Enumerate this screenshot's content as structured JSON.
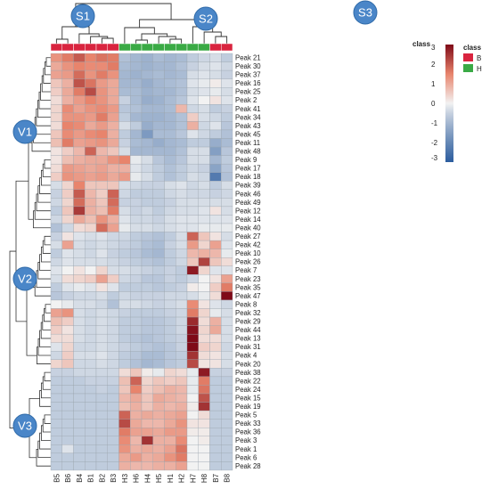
{
  "chart_data": {
    "type": "heatmap",
    "columns": [
      "B5",
      "B6",
      "B4",
      "B1",
      "B2",
      "B3",
      "H3",
      "H6",
      "H4",
      "H5",
      "H1",
      "H2",
      "H7",
      "H8",
      "B7",
      "B8"
    ],
    "column_class": [
      "B",
      "B",
      "B",
      "B",
      "B",
      "B",
      "H",
      "H",
      "H",
      "H",
      "H",
      "H",
      "H",
      "H",
      "B",
      "B"
    ],
    "rows": [
      "Peak 21",
      "Peak 30",
      "Peak 37",
      "Peak 16",
      "Peak 25",
      "Peak 2",
      "Peak 41",
      "Peak 34",
      "Peak 43",
      "Peak 45",
      "Peak 11",
      "Peak 48",
      "Peak 9",
      "Peak 17",
      "Peak 18",
      "Peak 39",
      "Peak 46",
      "Peak 49",
      "Peak 12",
      "Peak 14",
      "Peak 40",
      "Peak 27",
      "Peak 42",
      "Peak 10",
      "Peak 26",
      "Peak 7",
      "Peak 23",
      "Peak 35",
      "Peak 47",
      "Peak 8",
      "Peak 32",
      "Peak 29",
      "Peak 44",
      "Peak 13",
      "Peak 31",
      "Peak 4",
      "Peak 20",
      "Peak 38",
      "Peak 22",
      "Peak 24",
      "Peak 15",
      "Peak 19",
      "Peak 5",
      "Peak 33",
      "Peak 36",
      "Peak 3",
      "Peak 1",
      "Peak 6",
      "Peak 28"
    ],
    "values": [
      [
        1.3,
        1.6,
        2.0,
        1.5,
        1.7,
        1.6,
        -0.8,
        -1.0,
        -1.1,
        -0.9,
        -1.0,
        -0.9,
        -0.6,
        -0.4,
        -0.3,
        -0.6
      ],
      [
        1.0,
        1.3,
        1.5,
        1.4,
        1.4,
        1.6,
        -0.9,
        -1.0,
        -1.1,
        -1.0,
        -1.0,
        -0.8,
        -0.5,
        -0.3,
        -0.2,
        -0.4
      ],
      [
        1.1,
        1.2,
        1.8,
        1.3,
        1.6,
        1.3,
        -1.0,
        -1.1,
        -1.0,
        -0.9,
        -1.0,
        -0.9,
        -0.3,
        -0.2,
        -0.3,
        -0.5
      ],
      [
        0.6,
        0.9,
        2.1,
        1.7,
        1.2,
        1.0,
        -1.0,
        -1.0,
        -1.2,
        -1.0,
        -0.9,
        -0.8,
        -0.2,
        -0.1,
        0.1,
        -0.2
      ],
      [
        0.5,
        1.0,
        1.6,
        2.2,
        1.3,
        1.0,
        -0.9,
        -0.9,
        -1.1,
        -1.0,
        -1.0,
        -0.8,
        -0.3,
        -0.2,
        -0.1,
        -0.3
      ],
      [
        0.3,
        0.9,
        1.2,
        1.5,
        1.3,
        1.0,
        -0.5,
        -0.9,
        -1.2,
        -1.1,
        -0.9,
        -0.7,
        -0.2,
        0.0,
        0.2,
        -0.2
      ],
      [
        0.4,
        1.4,
        1.1,
        1.3,
        1.4,
        1.2,
        -0.7,
        -0.8,
        -1.0,
        -1.0,
        -0.9,
        0.8,
        -0.4,
        -0.3,
        -0.6,
        -0.5
      ],
      [
        0.4,
        1.3,
        1.3,
        1.2,
        1.6,
        1.1,
        -0.6,
        -1.0,
        -1.1,
        -1.1,
        -1.0,
        -0.8,
        0.5,
        -0.3,
        -0.4,
        -0.6
      ],
      [
        0.3,
        1.5,
        1.4,
        1.0,
        1.2,
        0.9,
        -0.3,
        -0.6,
        -1.2,
        -1.0,
        -1.0,
        -0.8,
        0.9,
        -0.4,
        -0.2,
        -0.7
      ],
      [
        0.6,
        1.4,
        1.2,
        1.4,
        1.5,
        0.9,
        -0.6,
        -1.0,
        -1.6,
        -0.9,
        -0.9,
        -0.7,
        -0.2,
        -0.4,
        -0.6,
        -0.8
      ],
      [
        0.7,
        1.6,
        1.1,
        1.2,
        1.3,
        1.0,
        -0.5,
        -0.9,
        -1.0,
        -1.2,
        -1.0,
        -0.9,
        -0.6,
        -0.6,
        -1.2,
        -0.9
      ],
      [
        0.2,
        0.5,
        0.8,
        1.9,
        0.8,
        0.6,
        -0.3,
        -1.0,
        -1.0,
        -1.0,
        -1.0,
        -0.8,
        -0.3,
        -0.3,
        -1.5,
        -0.7
      ],
      [
        0.2,
        0.7,
        0.9,
        1.0,
        1.0,
        1.3,
        1.5,
        -0.1,
        -0.3,
        -0.7,
        -0.9,
        -0.7,
        -0.3,
        -0.3,
        -1.0,
        -0.6
      ],
      [
        0.3,
        1.2,
        1.1,
        1.0,
        1.1,
        0.9,
        0.9,
        -0.2,
        -0.4,
        -0.6,
        -0.8,
        -0.6,
        -0.4,
        -0.5,
        -1.4,
        -0.7
      ],
      [
        0.5,
        1.3,
        1.2,
        1.1,
        1.2,
        1.0,
        1.2,
        -0.1,
        -0.3,
        -0.6,
        -0.8,
        -0.6,
        -0.3,
        -0.4,
        -2.3,
        -0.8
      ],
      [
        -0.3,
        0.4,
        1.5,
        0.6,
        0.6,
        0.6,
        -0.3,
        -0.4,
        -0.5,
        -0.5,
        -0.3,
        -0.2,
        -0.4,
        -0.3,
        -0.6,
        -0.3
      ],
      [
        -0.5,
        0.5,
        2.0,
        0.8,
        0.5,
        1.9,
        -0.4,
        -0.6,
        -0.6,
        -0.6,
        -0.4,
        -0.3,
        -0.4,
        -0.4,
        -0.5,
        -0.4
      ],
      [
        -0.4,
        0.4,
        1.8,
        0.9,
        0.6,
        1.8,
        -0.5,
        -0.5,
        -0.6,
        -0.6,
        -0.5,
        -0.3,
        -0.3,
        -0.3,
        -0.3,
        -0.3
      ],
      [
        -0.6,
        0.6,
        2.4,
        0.9,
        0.7,
        1.6,
        -0.3,
        -0.5,
        -0.4,
        -0.6,
        -0.4,
        -0.3,
        -0.3,
        -0.2,
        0.2,
        -0.3
      ],
      [
        -0.4,
        0.4,
        1.0,
        0.7,
        1.3,
        0.9,
        -0.2,
        -0.4,
        -0.4,
        -0.5,
        -0.3,
        -0.2,
        -0.2,
        -0.2,
        -0.2,
        -0.2
      ],
      [
        -0.8,
        -0.4,
        0.3,
        0.4,
        1.8,
        1.1,
        -0.1,
        -0.3,
        -0.3,
        -0.4,
        -0.3,
        -0.2,
        -0.2,
        -0.1,
        -0.1,
        -0.1
      ],
      [
        -0.5,
        0.2,
        -0.2,
        -0.3,
        -0.2,
        -0.4,
        -0.4,
        -0.6,
        -0.7,
        -0.8,
        -0.6,
        -0.3,
        1.9,
        0.6,
        0.2,
        -0.3
      ],
      [
        -0.3,
        1.1,
        -0.3,
        -0.4,
        -0.3,
        -0.4,
        -0.5,
        -0.6,
        -0.8,
        -0.9,
        -0.5,
        -0.3,
        1.2,
        0.4,
        1.1,
        -0.2
      ],
      [
        -0.6,
        -0.2,
        -0.3,
        -0.4,
        -0.2,
        -0.5,
        -0.6,
        -0.7,
        -0.9,
        -1.0,
        -0.6,
        -0.4,
        0.8,
        0.9,
        0.8,
        -0.1
      ],
      [
        -0.4,
        -0.2,
        -0.3,
        -0.3,
        -0.3,
        -0.4,
        -0.5,
        -0.6,
        -0.7,
        -0.8,
        -0.6,
        -0.4,
        0.6,
        2.3,
        0.6,
        0.3
      ],
      [
        -0.2,
        0.0,
        0.2,
        0.0,
        0.4,
        -0.3,
        -0.3,
        -0.4,
        -0.5,
        -0.6,
        -0.5,
        -0.6,
        2.8,
        0.4,
        -0.2,
        -0.2
      ],
      [
        -0.3,
        0.3,
        0.4,
        0.5,
        1.1,
        0.5,
        -0.4,
        -0.5,
        -0.7,
        -0.7,
        -0.5,
        -0.6,
        -0.4,
        0.0,
        0.2,
        1.1
      ],
      [
        -0.6,
        -0.2,
        -0.1,
        -0.2,
        0.2,
        -0.2,
        -0.6,
        -0.6,
        -0.6,
        -0.7,
        -0.6,
        -0.5,
        0.1,
        0.0,
        0.5,
        1.6
      ],
      [
        -0.7,
        -0.5,
        -0.4,
        -0.4,
        -0.3,
        -0.6,
        -0.4,
        -0.5,
        -0.5,
        -0.5,
        -0.4,
        -0.4,
        -0.3,
        -0.1,
        0.3,
        3.1
      ],
      [
        0.0,
        -0.1,
        -0.3,
        -0.3,
        -0.4,
        -0.8,
        -0.3,
        -0.3,
        -0.4,
        -0.5,
        -0.4,
        -0.3,
        1.4,
        0.2,
        -0.2,
        -0.4
      ],
      [
        1.1,
        1.3,
        -0.3,
        -0.4,
        -0.3,
        -0.4,
        -0.5,
        -0.6,
        -0.6,
        -0.6,
        -0.5,
        -0.4,
        1.6,
        0.4,
        -0.1,
        -0.3
      ],
      [
        0.7,
        0.5,
        -0.3,
        -0.4,
        -0.3,
        -0.4,
        -0.6,
        -0.6,
        -0.7,
        -0.7,
        -0.6,
        -0.4,
        2.6,
        0.3,
        0.9,
        -0.3
      ],
      [
        0.5,
        0.2,
        -0.3,
        -0.4,
        -0.3,
        -0.4,
        -0.6,
        -0.6,
        -0.7,
        -0.7,
        -0.6,
        -0.4,
        2.9,
        0.4,
        1.0,
        -0.3
      ],
      [
        0.3,
        0.3,
        -0.3,
        -0.4,
        -0.3,
        -0.4,
        -0.6,
        -0.7,
        -0.8,
        -0.7,
        -0.6,
        -0.5,
        3.3,
        0.3,
        0.3,
        -0.3
      ],
      [
        -0.2,
        0.4,
        -0.4,
        -0.4,
        -0.3,
        -0.4,
        -0.5,
        -0.6,
        -0.7,
        -0.8,
        -0.7,
        -0.5,
        3.0,
        0.5,
        0.4,
        -0.4
      ],
      [
        -0.4,
        0.5,
        -0.3,
        -0.3,
        -0.2,
        -0.4,
        -0.6,
        -0.7,
        -0.9,
        -0.9,
        -0.7,
        -0.6,
        2.5,
        0.3,
        0.2,
        -0.3
      ],
      [
        0.4,
        0.6,
        -0.4,
        -0.4,
        -0.3,
        -0.4,
        -0.6,
        -0.8,
        -1.0,
        -0.9,
        -0.7,
        -0.6,
        2.2,
        0.2,
        0.2,
        -0.3
      ],
      [
        -0.5,
        -0.5,
        -0.4,
        -0.4,
        -0.4,
        -0.4,
        0.3,
        0.6,
        0.1,
        -0.1,
        0.4,
        0.3,
        -0.1,
        2.8,
        -0.5,
        -0.5
      ],
      [
        -0.6,
        -0.6,
        -0.6,
        -0.5,
        -0.5,
        -0.5,
        0.7,
        1.9,
        0.4,
        0.6,
        0.5,
        0.6,
        -0.1,
        1.6,
        -0.6,
        -0.6
      ],
      [
        -0.6,
        -0.6,
        -0.6,
        -0.6,
        -0.5,
        -0.6,
        0.6,
        1.5,
        0.5,
        0.7,
        0.9,
        0.8,
        -0.1,
        1.7,
        -0.6,
        -0.6
      ],
      [
        -0.6,
        -0.6,
        -0.6,
        -0.6,
        -0.6,
        -0.6,
        0.8,
        1.0,
        0.6,
        1.0,
        0.9,
        0.8,
        0.0,
        2.1,
        -0.6,
        -0.6
      ],
      [
        -0.6,
        -0.6,
        -0.6,
        -0.6,
        -0.6,
        -0.6,
        0.7,
        0.9,
        0.6,
        0.9,
        0.8,
        0.9,
        0.1,
        2.5,
        -0.6,
        -0.6
      ],
      [
        -0.6,
        -0.6,
        -0.6,
        -0.6,
        -0.6,
        -0.6,
        1.9,
        0.9,
        1.0,
        0.9,
        1.0,
        1.1,
        0.0,
        0.3,
        -0.6,
        -0.6
      ],
      [
        -0.6,
        -0.6,
        -0.6,
        -0.6,
        -0.6,
        -0.6,
        2.2,
        1.0,
        0.8,
        0.8,
        1.0,
        1.3,
        0.2,
        0.2,
        -0.6,
        -0.6
      ],
      [
        -0.6,
        -0.6,
        -0.6,
        -0.6,
        -0.6,
        -0.6,
        1.6,
        1.1,
        1.1,
        1.0,
        1.2,
        1.2,
        0.1,
        0.1,
        -0.6,
        -0.6
      ],
      [
        -0.6,
        -0.6,
        -0.6,
        -0.6,
        -0.6,
        -0.6,
        1.4,
        0.8,
        2.5,
        0.9,
        0.9,
        1.4,
        0.0,
        0.1,
        -0.6,
        -0.6
      ],
      [
        -0.6,
        -0.2,
        -0.6,
        -0.6,
        -0.6,
        -0.6,
        1.3,
        0.9,
        1.0,
        0.9,
        1.1,
        1.7,
        0.0,
        0.0,
        -0.6,
        -0.6
      ],
      [
        -0.6,
        -0.6,
        -0.6,
        -0.6,
        -0.6,
        -0.6,
        1.0,
        1.2,
        0.9,
        1.0,
        1.3,
        1.6,
        0.0,
        0.0,
        -0.6,
        -0.6
      ],
      [
        -0.6,
        -0.6,
        -0.6,
        -0.6,
        -0.6,
        -0.6,
        0.9,
        0.8,
        0.8,
        0.9,
        0.9,
        1.1,
        0.0,
        0.0,
        -0.6,
        -0.6
      ]
    ],
    "color_scale": {
      "min": -3,
      "max": 3,
      "low": "#2b5c9e",
      "mid": "#f2f2f2",
      "high": "#7f0a18"
    },
    "colorbar_ticks": [
      3,
      2,
      1,
      0,
      -1,
      -2,
      -3
    ],
    "legend": {
      "title": "class",
      "entries": [
        {
          "label": "B",
          "color": "#d9243f"
        },
        {
          "label": "H",
          "color": "#3aaa45"
        }
      ]
    },
    "class_bar_label": "class",
    "column_cluster_labels": [
      "S1",
      "S2",
      "S3"
    ],
    "row_cluster_labels": [
      "V1",
      "V2",
      "V3"
    ],
    "badge_color": "#4a86c8",
    "dendrogram_color": "#333333"
  }
}
